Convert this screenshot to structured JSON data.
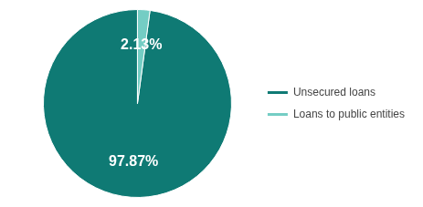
{
  "chart_data": {
    "type": "pie",
    "categories": [
      "Unsecured loans",
      "Loans to public entities"
    ],
    "values": [
      97.87,
      2.13
    ],
    "value_labels": [
      "97.87%",
      "2.13%"
    ],
    "colors": [
      "#0f7a74",
      "#74cdc4"
    ],
    "data_labels": true,
    "legend": "right"
  }
}
